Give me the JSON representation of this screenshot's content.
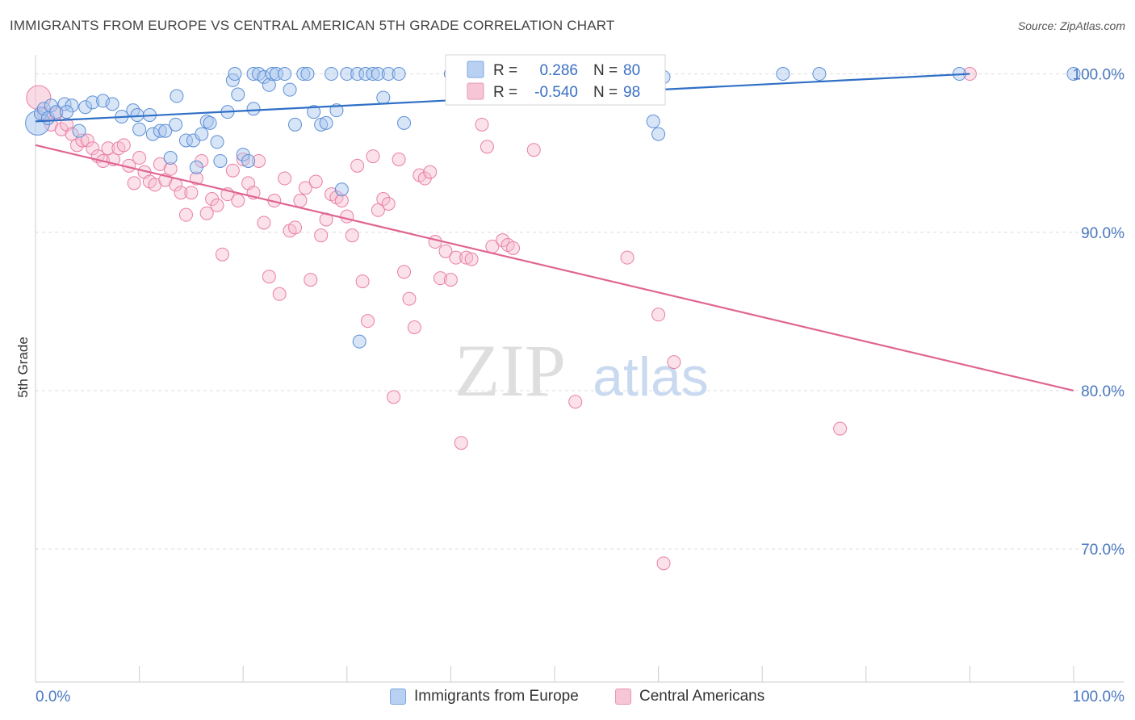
{
  "header": {
    "title": "IMMIGRANTS FROM EUROPE VS CENTRAL AMERICAN 5TH GRADE CORRELATION CHART",
    "source": "Source: ZipAtlas.com"
  },
  "watermark": {
    "zip": "ZIP",
    "atlas": "atlas"
  },
  "colors": {
    "blue": "#5b8fd6",
    "blue_fill": "#a9c6ee",
    "pink": "#e97fa5",
    "pink_fill": "#f6bcd0",
    "blue_line": "#2f6fc6",
    "pink_line": "#e06592",
    "tick_text": "#4a78c0"
  },
  "legend_top": [
    {
      "r_label": "R =",
      "r_value": "0.286",
      "n_label": "N =",
      "n_value": "80"
    },
    {
      "r_label": "R =",
      "r_value": "-0.540",
      "n_label": "N =",
      "n_value": "98"
    }
  ],
  "legend_bottom": [
    "Immigrants from Europe",
    "Central Americans"
  ],
  "chart_data": {
    "type": "scatter",
    "xlabel": "",
    "ylabel": "5th Grade",
    "xlim": [
      0,
      100
    ],
    "ylim": [
      61.6,
      101.2
    ],
    "x_tick_labels": [
      "0.0%",
      "100.0%"
    ],
    "y_ticks": [
      70,
      80,
      90,
      100
    ],
    "y_tick_labels": [
      "70.0%",
      "80.0%",
      "90.0%",
      "100.0%"
    ],
    "grid": true,
    "legend_position": "top-center",
    "series": [
      {
        "name": "Immigrants from Europe",
        "r": 0.286,
        "n": 80,
        "trend": [
          [
            0,
            97.0
          ],
          [
            90,
            100.0
          ]
        ],
        "points": [
          [
            0.2,
            96.9
          ],
          [
            0.5,
            97.5
          ],
          [
            0.8,
            97.8
          ],
          [
            1.2,
            97.2
          ],
          [
            1.5,
            98.0
          ],
          [
            2.0,
            97.6
          ],
          [
            2.8,
            98.1
          ],
          [
            3.5,
            98.0
          ],
          [
            4.2,
            96.4
          ],
          [
            4.8,
            97.9
          ],
          [
            5.5,
            98.2
          ],
          [
            6.5,
            98.3
          ],
          [
            7.4,
            98.1
          ],
          [
            8.3,
            97.3
          ],
          [
            9.4,
            97.7
          ],
          [
            9.8,
            97.4
          ],
          [
            10.0,
            96.5
          ],
          [
            11.0,
            97.4
          ],
          [
            11.3,
            96.2
          ],
          [
            12.0,
            96.4
          ],
          [
            12.5,
            96.4
          ],
          [
            13.0,
            94.7
          ],
          [
            13.5,
            96.8
          ],
          [
            13.6,
            98.6
          ],
          [
            14.5,
            95.8
          ],
          [
            15.2,
            95.8
          ],
          [
            15.5,
            94.1
          ],
          [
            16.0,
            96.2
          ],
          [
            16.5,
            97.0
          ],
          [
            16.8,
            96.9
          ],
          [
            17.5,
            95.7
          ],
          [
            17.8,
            94.5
          ],
          [
            18.5,
            97.6
          ],
          [
            19.0,
            99.6
          ],
          [
            19.2,
            100.0
          ],
          [
            19.5,
            98.7
          ],
          [
            20.0,
            94.9
          ],
          [
            20.5,
            94.5
          ],
          [
            21.0,
            100.0
          ],
          [
            21.0,
            97.8
          ],
          [
            21.5,
            100.0
          ],
          [
            22.0,
            99.8
          ],
          [
            22.5,
            99.3
          ],
          [
            22.8,
            100.0
          ],
          [
            23.2,
            100.0
          ],
          [
            24.0,
            100.0
          ],
          [
            24.5,
            99.0
          ],
          [
            25.0,
            96.8
          ],
          [
            25.8,
            100.0
          ],
          [
            26.2,
            100.0
          ],
          [
            26.8,
            97.6
          ],
          [
            27.5,
            96.8
          ],
          [
            28.0,
            96.9
          ],
          [
            28.5,
            100.0
          ],
          [
            29.0,
            97.7
          ],
          [
            29.5,
            92.7
          ],
          [
            30.0,
            100.0
          ],
          [
            31.0,
            100.0
          ],
          [
            31.2,
            83.1
          ],
          [
            31.8,
            100.0
          ],
          [
            32.5,
            100.0
          ],
          [
            33.0,
            100.0
          ],
          [
            33.5,
            98.5
          ],
          [
            34.0,
            100.0
          ],
          [
            35.0,
            100.0
          ],
          [
            35.5,
            96.9
          ],
          [
            40.0,
            100.0
          ],
          [
            45.5,
            100.0
          ],
          [
            46.0,
            100.0
          ],
          [
            47.0,
            100.0
          ],
          [
            49.0,
            99.7
          ],
          [
            56.0,
            100.0
          ],
          [
            59.5,
            97.0
          ],
          [
            60.0,
            96.2
          ],
          [
            60.5,
            99.8
          ],
          [
            72.0,
            100.0
          ],
          [
            75.5,
            100.0
          ],
          [
            89.0,
            100.0
          ],
          [
            100.0,
            100.0
          ],
          [
            3.0,
            97.6
          ]
        ]
      },
      {
        "name": "Central Americans",
        "r": -0.54,
        "n": 98,
        "trend": [
          [
            0,
            95.5
          ],
          [
            100,
            80.0
          ]
        ],
        "points": [
          [
            0.3,
            98.5
          ],
          [
            0.8,
            97.5
          ],
          [
            1.5,
            96.8
          ],
          [
            2.0,
            97.5
          ],
          [
            2.5,
            96.5
          ],
          [
            3.0,
            96.8
          ],
          [
            3.5,
            96.2
          ],
          [
            4.0,
            95.5
          ],
          [
            4.5,
            95.8
          ],
          [
            5.0,
            95.8
          ],
          [
            5.5,
            95.3
          ],
          [
            6.0,
            94.8
          ],
          [
            6.5,
            94.5
          ],
          [
            7.0,
            95.3
          ],
          [
            7.5,
            94.6
          ],
          [
            8.0,
            95.3
          ],
          [
            8.5,
            95.5
          ],
          [
            9.0,
            94.2
          ],
          [
            9.5,
            93.1
          ],
          [
            10.0,
            94.7
          ],
          [
            10.5,
            93.8
          ],
          [
            11.0,
            93.2
          ],
          [
            11.5,
            93.0
          ],
          [
            12.0,
            94.3
          ],
          [
            12.5,
            93.3
          ],
          [
            13.0,
            94.0
          ],
          [
            13.5,
            93.0
          ],
          [
            14.0,
            92.5
          ],
          [
            14.5,
            91.1
          ],
          [
            15.0,
            92.5
          ],
          [
            15.5,
            93.4
          ],
          [
            16.0,
            94.5
          ],
          [
            16.5,
            91.2
          ],
          [
            17.0,
            92.1
          ],
          [
            17.5,
            91.7
          ],
          [
            18.0,
            88.6
          ],
          [
            18.5,
            92.4
          ],
          [
            19.0,
            93.9
          ],
          [
            19.5,
            92.0
          ],
          [
            20.0,
            94.6
          ],
          [
            20.5,
            93.1
          ],
          [
            21.0,
            92.5
          ],
          [
            21.5,
            94.5
          ],
          [
            22.0,
            90.6
          ],
          [
            22.5,
            87.2
          ],
          [
            23.0,
            92.0
          ],
          [
            23.5,
            86.1
          ],
          [
            24.0,
            93.4
          ],
          [
            24.5,
            90.1
          ],
          [
            25.0,
            90.3
          ],
          [
            25.5,
            92.0
          ],
          [
            26.0,
            92.8
          ],
          [
            26.5,
            87.0
          ],
          [
            27.0,
            93.2
          ],
          [
            27.5,
            89.8
          ],
          [
            28.0,
            90.8
          ],
          [
            28.5,
            92.4
          ],
          [
            29.0,
            92.2
          ],
          [
            29.5,
            92.0
          ],
          [
            30.0,
            91.0
          ],
          [
            30.5,
            89.8
          ],
          [
            31.0,
            94.2
          ],
          [
            31.5,
            86.9
          ],
          [
            32.0,
            84.4
          ],
          [
            32.5,
            94.8
          ],
          [
            33.0,
            91.4
          ],
          [
            33.5,
            92.1
          ],
          [
            34.0,
            91.8
          ],
          [
            34.5,
            79.6
          ],
          [
            35.0,
            94.6
          ],
          [
            35.5,
            87.5
          ],
          [
            36.0,
            85.8
          ],
          [
            36.5,
            84.0
          ],
          [
            37.0,
            93.6
          ],
          [
            37.5,
            93.4
          ],
          [
            38.0,
            93.8
          ],
          [
            38.5,
            89.4
          ],
          [
            39.0,
            87.1
          ],
          [
            39.5,
            88.8
          ],
          [
            40.0,
            87.0
          ],
          [
            40.5,
            88.4
          ],
          [
            41.0,
            76.7
          ],
          [
            41.5,
            88.4
          ],
          [
            42.0,
            88.3
          ],
          [
            43.0,
            96.8
          ],
          [
            43.5,
            95.4
          ],
          [
            44.0,
            89.1
          ],
          [
            45.0,
            89.5
          ],
          [
            45.5,
            89.2
          ],
          [
            46.0,
            89.0
          ],
          [
            48.0,
            95.2
          ],
          [
            52.0,
            79.3
          ],
          [
            57.0,
            88.4
          ],
          [
            60.0,
            84.8
          ],
          [
            60.5,
            69.1
          ],
          [
            61.5,
            81.8
          ],
          [
            77.5,
            77.6
          ],
          [
            90.0,
            100.0
          ]
        ]
      }
    ]
  }
}
